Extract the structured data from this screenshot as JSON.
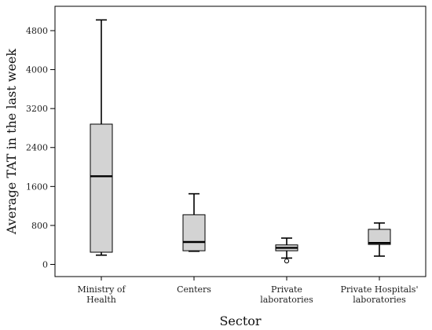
{
  "chart_data": {
    "type": "boxplot",
    "title": "",
    "xlabel": "Sector",
    "ylabel": "Average TAT in the last week",
    "ylim": [
      -250,
      5300
    ],
    "yticks": [
      "0",
      "800",
      "1600",
      "2400",
      "3200",
      "4000",
      "4800"
    ],
    "categories": [
      [
        "Ministry of",
        "Health"
      ],
      [
        "Centers"
      ],
      [
        "Private",
        "laboratories"
      ],
      [
        "Private Hospitals'",
        "laboratories"
      ]
    ],
    "boxes": [
      {
        "min": 190,
        "q1": 250,
        "median": 1810,
        "q3": 2880,
        "max": 5020,
        "outliers": []
      },
      {
        "min": 270,
        "q1": 280,
        "median": 460,
        "q3": 1020,
        "max": 1450,
        "outliers": []
      },
      {
        "min": 130,
        "q1": 280,
        "median": 340,
        "q3": 400,
        "max": 540,
        "outliers": [
          70
        ]
      },
      {
        "min": 170,
        "q1": 410,
        "median": 440,
        "q3": 720,
        "max": 850,
        "outliers": []
      }
    ],
    "box_color": "#d3d3d3",
    "grid": false
  }
}
